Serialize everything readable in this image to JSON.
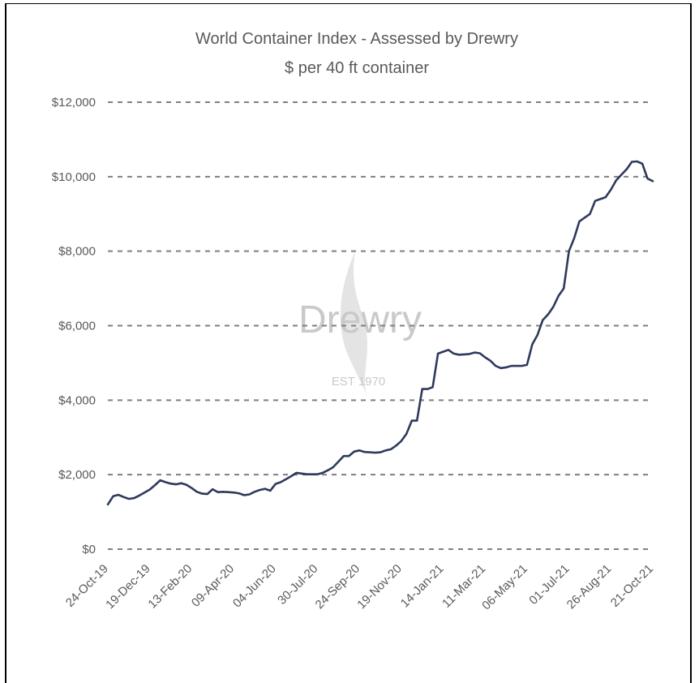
{
  "chart_data": {
    "type": "line",
    "title": "World Container Index - Assessed by Drewry",
    "subtitle": "$ per 40 ft container",
    "xlabel": "",
    "ylabel": "",
    "ylim": [
      0,
      12000
    ],
    "y_ticks": [
      "$0",
      "$2,000",
      "$4,000",
      "$6,000",
      "$8,000",
      "$10,000",
      "$12,000"
    ],
    "x_ticks": [
      "24-Oct-19",
      "19-Dec-19",
      "13-Feb-20",
      "09-Apr-20",
      "04-Jun-20",
      "30-Jul-20",
      "24-Sep-20",
      "19-Nov-20",
      "14-Jan-21",
      "11-Mar-21",
      "06-May-21",
      "01-Jul-21",
      "26-Aug-21",
      "21-Oct-21"
    ],
    "grid": "horizontal dashed",
    "legend": "none",
    "line_color": "#2e3a5c",
    "watermark": {
      "brand": "Drewry",
      "est": "EST 1970"
    },
    "series": [
      {
        "x": [
          "2019-10-24",
          "2019-10-31",
          "2019-11-07",
          "2019-11-14",
          "2019-11-21",
          "2019-11-28",
          "2019-12-05",
          "2019-12-12",
          "2019-12-19",
          "2019-12-26",
          "2020-01-02",
          "2020-01-09",
          "2020-01-16",
          "2020-01-23",
          "2020-01-30",
          "2020-02-06",
          "2020-02-13",
          "2020-02-20",
          "2020-02-27",
          "2020-03-05",
          "2020-03-12",
          "2020-03-19",
          "2020-03-26",
          "2020-04-02",
          "2020-04-09",
          "2020-04-16",
          "2020-04-23",
          "2020-04-30",
          "2020-05-07",
          "2020-05-14",
          "2020-05-21",
          "2020-05-28",
          "2020-06-04",
          "2020-06-11",
          "2020-06-18",
          "2020-06-25",
          "2020-07-02",
          "2020-07-09",
          "2020-07-16",
          "2020-07-23",
          "2020-07-30",
          "2020-08-06",
          "2020-08-13",
          "2020-08-20",
          "2020-08-27",
          "2020-09-03",
          "2020-09-10",
          "2020-09-17",
          "2020-09-24",
          "2020-10-01",
          "2020-10-08",
          "2020-10-15",
          "2020-10-22",
          "2020-10-29",
          "2020-11-05",
          "2020-11-12",
          "2020-11-19",
          "2020-11-26",
          "2020-12-03",
          "2020-12-10",
          "2020-12-17",
          "2020-12-24",
          "2020-12-31",
          "2021-01-07",
          "2021-01-14",
          "2021-01-21",
          "2021-01-28",
          "2021-02-04",
          "2021-02-11",
          "2021-02-18",
          "2021-02-25",
          "2021-03-04",
          "2021-03-11",
          "2021-03-18",
          "2021-03-25",
          "2021-04-01",
          "2021-04-08",
          "2021-04-15",
          "2021-04-22",
          "2021-04-29",
          "2021-05-06",
          "2021-05-13",
          "2021-05-20",
          "2021-05-27",
          "2021-06-03",
          "2021-06-10",
          "2021-06-17",
          "2021-06-24",
          "2021-07-01",
          "2021-07-08",
          "2021-07-15",
          "2021-07-22",
          "2021-07-29",
          "2021-08-05",
          "2021-08-12",
          "2021-08-19",
          "2021-08-26",
          "2021-09-02",
          "2021-09-09",
          "2021-09-16",
          "2021-09-23",
          "2021-09-30",
          "2021-10-07",
          "2021-10-14",
          "2021-10-21"
        ],
        "y": [
          1200,
          1420,
          1460,
          1400,
          1350,
          1370,
          1440,
          1520,
          1600,
          1720,
          1850,
          1800,
          1760,
          1740,
          1770,
          1730,
          1640,
          1540,
          1490,
          1480,
          1610,
          1530,
          1540,
          1530,
          1520,
          1500,
          1450,
          1470,
          1540,
          1590,
          1620,
          1570,
          1750,
          1800,
          1880,
          1960,
          2050,
          2030,
          2010,
          2010,
          2010,
          2050,
          2120,
          2200,
          2350,
          2500,
          2500,
          2620,
          2650,
          2610,
          2600,
          2590,
          2600,
          2650,
          2680,
          2780,
          2900,
          3100,
          3450,
          3450,
          4300,
          4300,
          4350,
          5250,
          5300,
          5350,
          5250,
          5220,
          5230,
          5240,
          5280,
          5260,
          5150,
          5060,
          4920,
          4860,
          4880,
          4920,
          4920,
          4920,
          4950,
          5500,
          5750,
          6150,
          6300,
          6500,
          6800,
          7000,
          8000,
          8350,
          8800,
          8900,
          9000,
          9350,
          9400,
          9450,
          9650,
          9900,
          10050,
          10200,
          10400,
          10410,
          10350,
          9950,
          9880
        ]
      }
    ]
  }
}
